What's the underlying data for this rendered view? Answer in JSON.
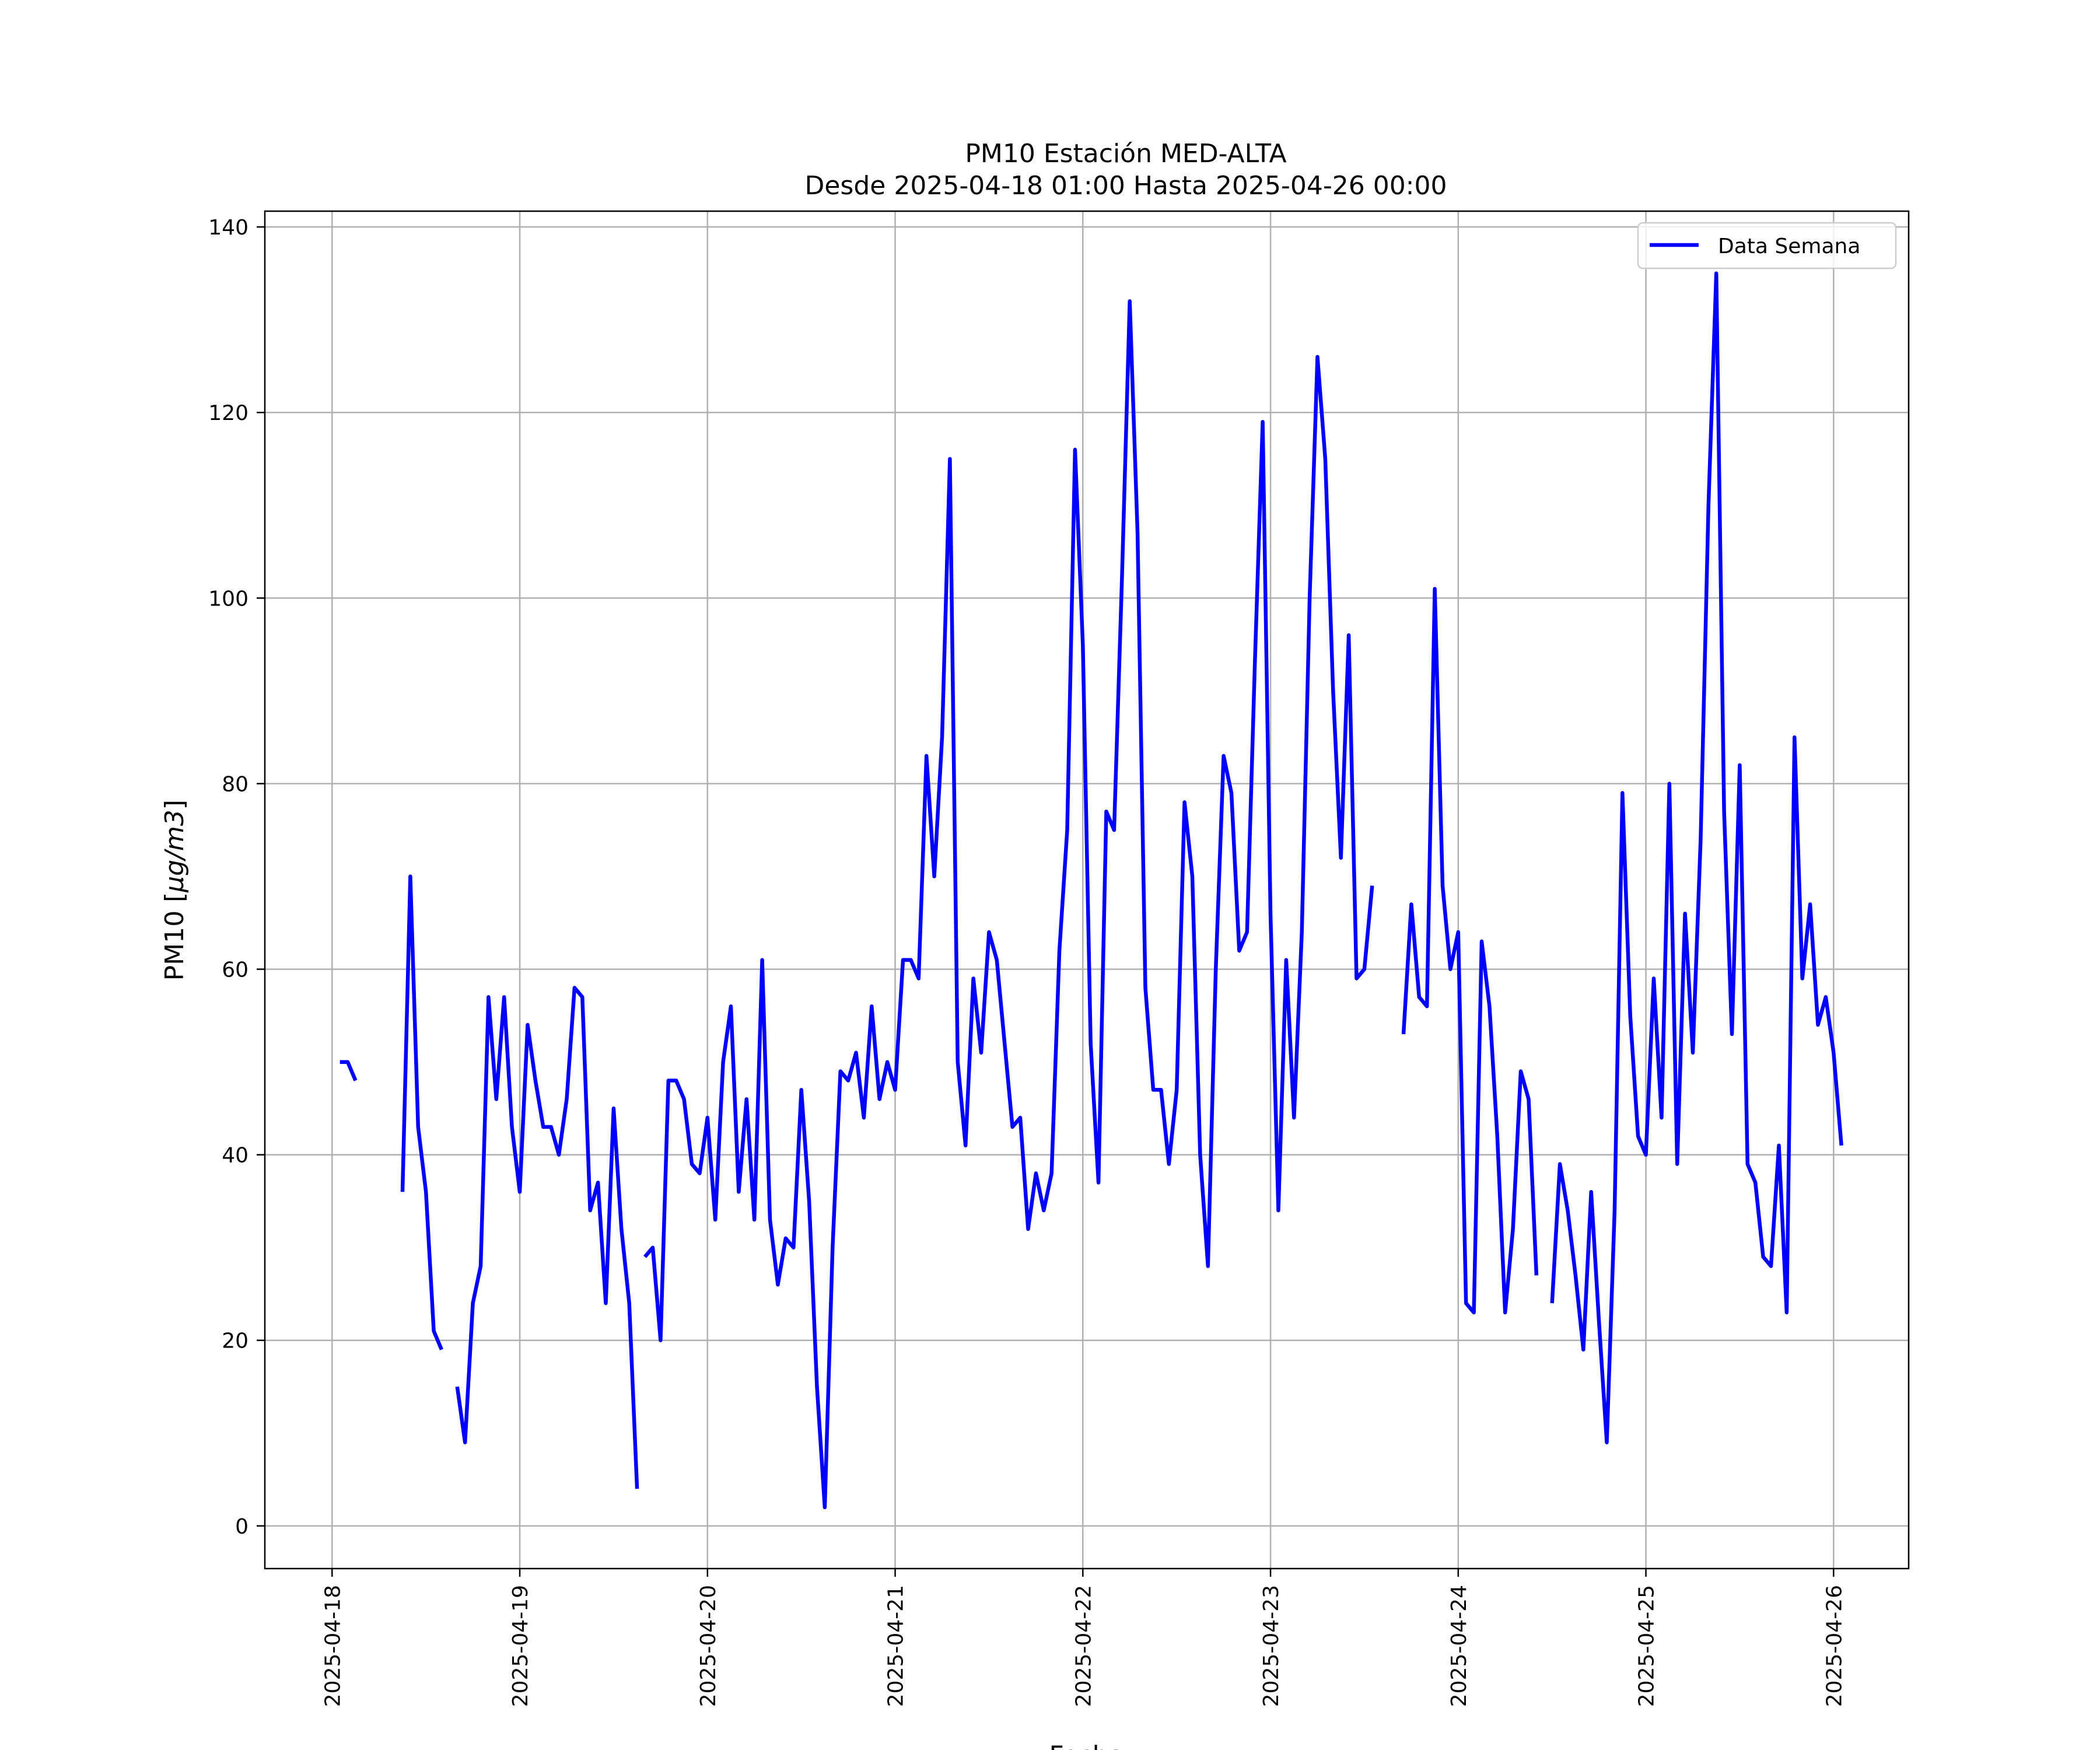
{
  "chart_data": {
    "type": "line",
    "title": "PM10 Estación MED-ALTA",
    "subtitle": "Desde 2025-04-18 01:00 Hasta 2025-04-26 00:00",
    "xlabel": "Fecha",
    "ylabel_main": "PM10 [",
    "ylabel_math": "μg/m3",
    "ylabel_close": "]",
    "ylim": [
      -4.6,
      141.7
    ],
    "xlim": [
      "2025-04-17 15:24",
      "2025-04-26 09:36"
    ],
    "y_ticks": [
      0,
      20,
      40,
      60,
      80,
      100,
      120,
      140
    ],
    "x_ticks": [
      "2025-04-18",
      "2025-04-19",
      "2025-04-20",
      "2025-04-21",
      "2025-04-22",
      "2025-04-23",
      "2025-04-24",
      "2025-04-25",
      "2025-04-26"
    ],
    "grid": true,
    "legend_position": "top-right",
    "series": [
      {
        "name": "Data Semana",
        "color": "#0000ff",
        "segments": [
          {
            "start": "2025-04-18 01:00",
            "step_hours": 1,
            "values": [
              50,
              50,
              48
            ]
          },
          {
            "start": "2025-04-18 09:00",
            "step_hours": 1,
            "values": [
              36,
              70,
              43,
              36,
              21,
              19
            ]
          },
          {
            "start": "2025-04-18 16:00",
            "step_hours": 1,
            "values": [
              15,
              9,
              24,
              28,
              57,
              46,
              57,
              43,
              36,
              54,
              48,
              43,
              43,
              40,
              46,
              58,
              57,
              34,
              37,
              24,
              45,
              32,
              24,
              4
            ]
          },
          {
            "start": "2025-04-19 16:00",
            "step_hours": 1,
            "values": [
              29,
              30,
              20,
              48,
              48,
              46,
              39,
              38,
              44,
              33,
              50,
              56,
              36,
              46,
              33,
              61,
              33,
              26,
              31,
              30,
              47,
              35,
              15,
              2,
              30,
              49,
              48,
              51,
              44,
              56,
              46,
              50,
              47,
              61,
              61,
              59,
              83,
              70,
              85,
              115,
              50,
              41,
              59,
              51,
              64,
              61,
              52,
              43,
              44,
              32,
              38,
              34,
              38,
              62,
              75,
              116,
              95,
              52,
              37,
              77,
              75,
              102,
              132,
              107,
              58,
              47,
              47,
              39,
              47,
              78,
              70,
              40,
              28,
              60,
              83,
              79,
              62,
              64,
              93,
              119,
              66,
              34,
              61,
              44,
              64,
              100,
              126,
              115,
              90,
              72,
              96,
              59,
              60,
              69
            ]
          },
          {
            "start": "2025-04-23 17:00",
            "step_hours": 1,
            "values": [
              53,
              67,
              57,
              56,
              101,
              69,
              60,
              64,
              24,
              23,
              63,
              56,
              42,
              23,
              32,
              49,
              46,
              27
            ]
          },
          {
            "start": "2025-04-24 12:00",
            "step_hours": 1,
            "values": [
              24,
              39,
              34,
              27,
              19,
              36,
              22,
              9,
              34,
              79,
              55,
              42,
              40,
              59,
              44,
              80,
              39,
              66,
              51,
              74,
              110,
              135,
              77,
              53,
              82,
              39,
              37,
              29,
              28,
              41,
              23,
              85,
              59,
              67,
              54,
              57,
              51,
              41
            ]
          }
        ]
      }
    ]
  }
}
